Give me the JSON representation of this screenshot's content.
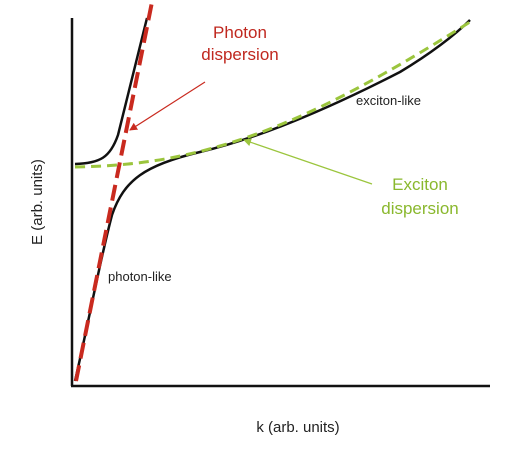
{
  "axes": {
    "x_label": "k (arb. units)",
    "y_label": "E (arb. units)"
  },
  "annotations": {
    "photon_dispersion": {
      "line1": "Photon",
      "line2": "dispersion"
    },
    "exciton_dispersion": {
      "line1": "Exciton",
      "line2": "dispersion"
    },
    "exciton_like": "exciton-like",
    "photon_like": "photon-like"
  },
  "colors": {
    "photon": "#c92a1f",
    "exciton": "#9bc53d",
    "polariton": "#111111",
    "axis": "#111111"
  }
}
